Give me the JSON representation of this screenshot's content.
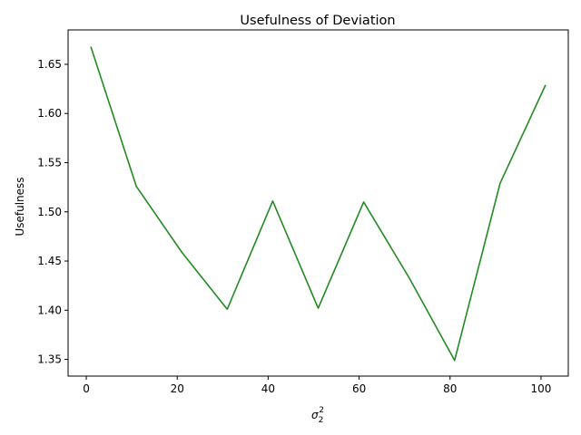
{
  "chart_data": {
    "type": "line",
    "title": "Usefulness of Deviation",
    "xlabel": "σ",
    "xlabel_sub": "2",
    "xlabel_sup": "2",
    "ylabel": "Usefulness",
    "xlim": [
      -4,
      106
    ],
    "ylim": [
      1.333,
      1.685
    ],
    "xticks": [
      0,
      20,
      40,
      60,
      80,
      100
    ],
    "yticks": [
      1.35,
      1.4,
      1.45,
      1.5,
      1.55,
      1.6,
      1.65
    ],
    "ytick_labels": [
      "1.35",
      "1.40",
      "1.45",
      "1.50",
      "1.55",
      "1.60",
      "1.65"
    ],
    "grid": false,
    "legend": "none",
    "line_color": "#228b22",
    "series": [
      {
        "x": [
          1,
          11,
          21,
          31,
          41,
          51,
          61,
          71,
          81,
          91,
          101
        ],
        "values": [
          1.668,
          1.526,
          1.459,
          1.401,
          1.511,
          1.402,
          1.51,
          1.433,
          1.349,
          1.529,
          1.629
        ]
      }
    ]
  }
}
